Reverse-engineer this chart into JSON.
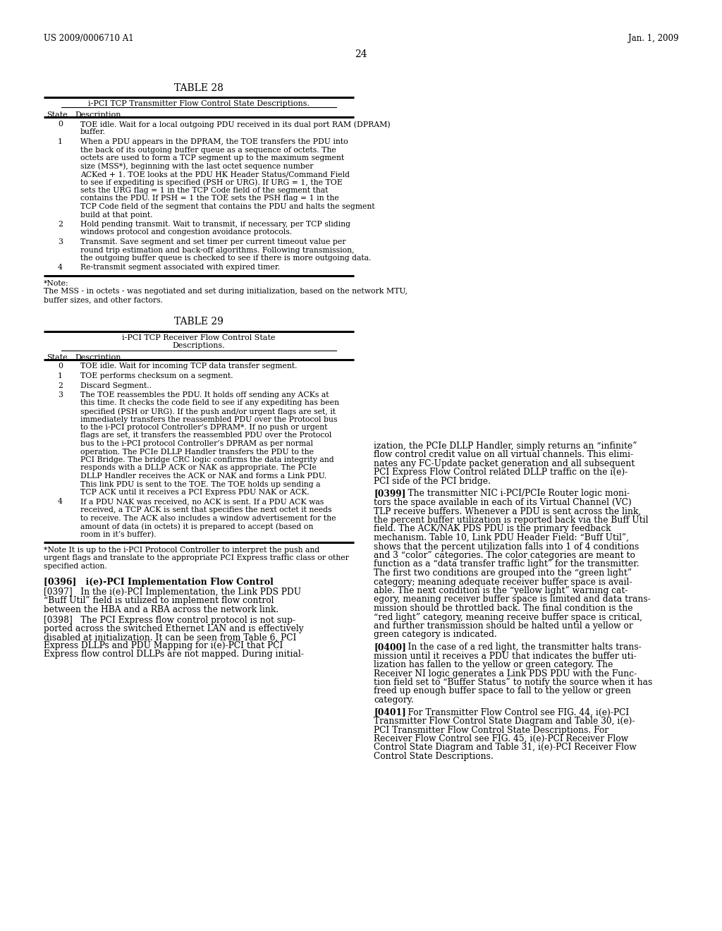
{
  "header_left": "US 2009/0006710 A1",
  "header_right": "Jan. 1, 2009",
  "page_number": "24",
  "background_color": "#ffffff",
  "table28_title": "TABLE 28",
  "table28_subtitle": "i-PCI TCP Transmitter Flow Control State Descriptions.",
  "table28_rows": [
    {
      "state": "0",
      "desc": "TOE idle. Wait for a local outgoing PDU received in its dual port RAM (DPRAM)\nbuffer."
    },
    {
      "state": "1",
      "desc": "When a PDU appears in the DPRAM, the TOE transfers the PDU into\nthe back of its outgoing buffer queue as a sequence of octets. The\noctets are used to form a TCP segment up to the maximum segment\nsize (MSS*), beginning with the last octet sequence number\nACKed + 1. TOE looks at the PDU HK Header Status/Command Field\nto see if expediting is specified (PSH or URG). If URG = 1, the TOE\nsets the URG flag = 1 in the TCP Code field of the segment that\ncontains the PDU. If PSH = 1 the TOE sets the PSH flag = 1 in the\nTCP Code field of the segment that contains the PDU and halts the segment\nbuild at that point."
    },
    {
      "state": "2",
      "desc": "Hold pending transmit. Wait to transmit, if necessary, per TCP sliding\nwindows protocol and congestion avoidance protocols."
    },
    {
      "state": "3",
      "desc": "Transmit. Save segment and set timer per current timeout value per\nround trip estimation and back-off algorithms. Following transmission,\nthe outgoing buffer queue is checked to see if there is more outgoing data."
    },
    {
      "state": "4",
      "desc": "Re-transmit segment associated with expired timer."
    }
  ],
  "table28_footnote_lines": [
    "*Note:",
    "The MSS - in octets - was negotiated and set during initialization, based on the network MTU,",
    "buffer sizes, and other factors."
  ],
  "table29_title": "TABLE 29",
  "table29_subtitle_lines": [
    "i-PCI TCP Receiver Flow Control State",
    "Descriptions."
  ],
  "table29_rows": [
    {
      "state": "0",
      "desc": "TOE idle. Wait for incoming TCP data transfer segment."
    },
    {
      "state": "1",
      "desc": "TOE performs checksum on a segment."
    },
    {
      "state": "2",
      "desc": "Discard Segment.."
    },
    {
      "state": "3",
      "desc": "The TOE reassembles the PDU. It holds off sending any ACKs at\nthis time. It checks the code field to see if any expediting has been\nspecified (PSH or URG). If the push and/or urgent flags are set, it\nimmediately transfers the reassembled PDU over the Protocol bus\nto the i-PCI protocol Controller’s DPRAM*. If no push or urgent\nflags are set, it transfers the reassembled PDU over the Protocol\nbus to the i-PCI protocol Controller’s DPRAM as per normal\noperation. The PCIe DLLP Handler transfers the PDU to the\nPCI Bridge. The bridge CRC logic confirms the data integrity and\nresponds with a DLLP ACK or NAK as appropriate. The PCIe\nDLLP Handler receives the ACK or NAK and forms a Link PDU.\nThis link PDU is sent to the TOE. The TOE holds up sending a\nTCP ACK until it receives a PCI Express PDU NAK or ACK."
    },
    {
      "state": "4",
      "desc": "If a PDU NAK was received, no ACK is sent. If a PDU ACK was\nreceived, a TCP ACK is sent that specifies the next octet it needs\nto receive. The ACK also includes a window advertisement for the\namount of data (in octets) it is prepared to accept (based on\nroom in it’s buffer)."
    }
  ],
  "table29_footnote_lines": [
    "*Note It is up to the i-PCI Protocol Controller to interpret the push and",
    "urgent flags and translate to the appropriate PCI Express traffic class or other",
    "specified action."
  ],
  "left_bottom_paras": [
    {
      "tag": "[0396]",
      "header": "   i(e)-PCI Implementation Flow Control",
      "lines": []
    },
    {
      "tag": "[0397]",
      "header": "",
      "lines": [
        "   In the i(e)-PCI Implementation, the Link PDS PDU",
        "“Buff Util” field is utilized to implement flow control",
        "between the HBA and a RBA across the network link."
      ]
    },
    {
      "tag": "[0398]",
      "header": "",
      "lines": [
        "   The PCI Express flow control protocol is not sup-",
        "ported across the switched Ethernet LAN and is effectively",
        "disabled at initialization. It can be seen from Table 6, PCI",
        "Express DLLPs and PDU Mapping for i(e)-PCI that PCI",
        "Express flow control DLLPs are not mapped. During initial-"
      ]
    }
  ],
  "right_col_paras": [
    {
      "tag": "",
      "lines": [
        "ization, the PCIe DLLP Handler, simply returns an “infinite”",
        "flow control credit value on all virtual channels. This elimi-",
        "nates any FC-Update packet generation and all subsequent",
        "PCI Express Flow Control related DLLP traffic on the i(e)-",
        "PCI side of the PCI bridge."
      ]
    },
    {
      "tag": "[0399]",
      "lines": [
        "    The transmitter NIC i-PCI/PCIe Router logic moni-",
        "tors the space available in each of its Virtual Channel (VC)",
        "TLP receive buffers. Whenever a PDU is sent across the link,",
        "the percent buffer utilization is reported back via the Buff Util",
        "field. The ACK/NAK PDS PDU is the primary feedback",
        "mechanism. Table 10, Link PDU Header Field: “Buff Util”,",
        "shows that the percent utilization falls into 1 of 4 conditions",
        "and 3 “color” categories. The color categories are meant to",
        "function as a “data transfer traffic light” for the transmitter.",
        "The first two conditions are grouped into the “green light”",
        "category; meaning adequate receiver buffer space is avail-",
        "able. The next condition is the “yellow light” warning cat-",
        "egory, meaning receiver buffer space is limited and data trans-",
        "mission should be throttled back. The final condition is the",
        "“red light” category, meaning receive buffer space is critical,",
        "and further transmission should be halted until a yellow or",
        "green category is indicated."
      ]
    },
    {
      "tag": "[0400]",
      "lines": [
        "    In the case of a red light, the transmitter halts trans-",
        "mission until it receives a PDU that indicates the buffer uti-",
        "lization has fallen to the yellow or green category. The",
        "Receiver NI logic generates a Link PDS PDU with the Func-",
        "tion field set to “Buffer Status” to notify the source when it has",
        "freed up enough buffer space to fall to the yellow or green",
        "category."
      ]
    },
    {
      "tag": "[0401]",
      "lines": [
        "    For Transmitter Flow Control see FIG. 44, i(e)-PCI",
        "Transmitter Flow Control State Diagram and Table 30, i(e)-",
        "PCI Transmitter Flow Control State Descriptions. For",
        "Receiver Flow Control see FIG. 45, i(e)-PCI Receiver Flow",
        "Control State Diagram and Table 31, i(e)-PCI Receiver Flow",
        "Control State Descriptions."
      ]
    }
  ]
}
